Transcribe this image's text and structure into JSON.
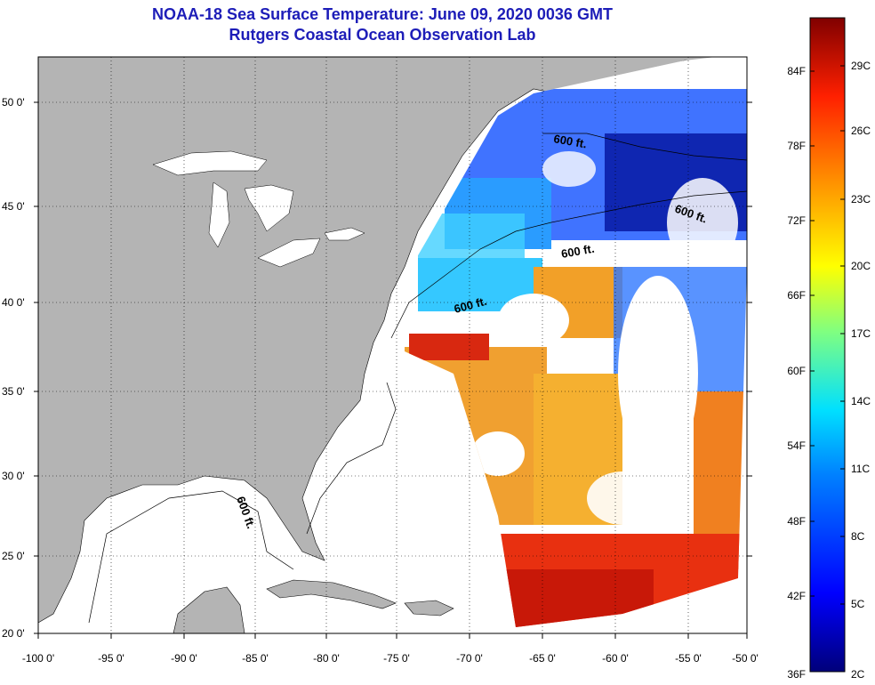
{
  "title": "NOAA-18 Sea Surface Temperature:  June 09, 2020 0036 GMT",
  "subtitle": "Rutgers Coastal Ocean Observation Lab",
  "lat_labels": [
    "50 0'",
    "45 0'",
    "40 0'",
    "35 0'",
    "30 0'",
    "25 0'",
    "20 0'"
  ],
  "lon_labels": [
    "-100 0'",
    "-95 0'",
    "-90 0'",
    "-85 0'",
    "-80 0'",
    "-75 0'",
    "-70 0'",
    "-65 0'",
    "-60 0'",
    "-55 0'",
    "-50 0'"
  ],
  "contour_label": "600 ft.",
  "colorbar": {
    "fahrenheit": [
      "84F",
      "78F",
      "72F",
      "66F",
      "60F",
      "54F",
      "48F",
      "42F",
      "36F"
    ],
    "celsius": [
      "29C",
      "26C",
      "23C",
      "20C",
      "17C",
      "14C",
      "11C",
      "8C",
      "5C",
      "2C"
    ]
  },
  "colors": {
    "land": "#b4b4b4",
    "no_data": "#ffffff",
    "title": "#1d1db8"
  }
}
